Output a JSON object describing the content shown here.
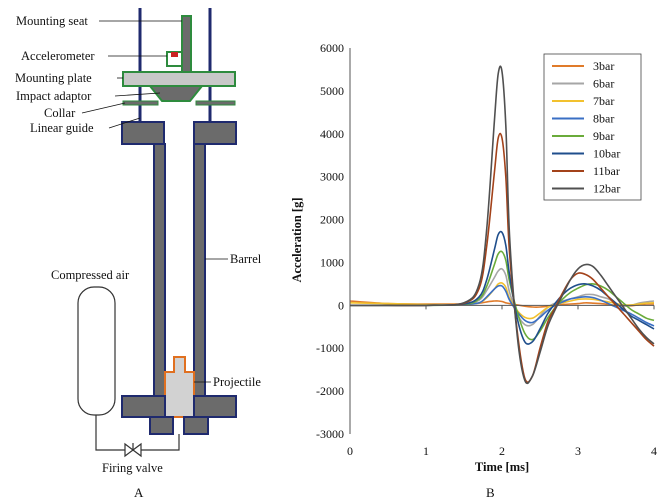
{
  "diagram": {
    "panel_label": "A",
    "labels": {
      "mounting_seat": "Mounting seat",
      "accelerometer": "Accelerometer",
      "mounting_plate": "Mounting plate",
      "impact_adaptor": "Impact adaptor",
      "collar": "Collar",
      "linear_guide": "Linear guide",
      "barrel": "Barrel",
      "compressed_air": "Compressed air",
      "projectile": "Projectile",
      "firing_valve": "Firing valve"
    },
    "colors": {
      "steel": "#6b6b6b",
      "steel_outline": "#1f2a6e",
      "plate": "#c8c8c8",
      "accent_green": "#2e8b3e",
      "accent_red": "#cc2222",
      "projectile_fill": "#d2d2d2",
      "projectile_outline": "#e07020"
    }
  },
  "chart_data": {
    "type": "line",
    "panel_label": "B",
    "xlabel": "Time [ms]",
    "ylabel": "Acceleration [g]",
    "xlim": [
      0,
      4
    ],
    "ylim": [
      -3000,
      6000
    ],
    "xticks": [
      "0",
      "1",
      "2",
      "3",
      "4"
    ],
    "yticks": [
      "-3000",
      "-2000",
      "-1000",
      "0",
      "1000",
      "2000",
      "3000",
      "4000",
      "5000",
      "6000"
    ],
    "grid": false,
    "legend_position": "top-right",
    "x": [
      0,
      0.5,
      1.0,
      1.5,
      1.7,
      1.8,
      1.9,
      1.95,
      2.0,
      2.05,
      2.1,
      2.2,
      2.3,
      2.4,
      2.5,
      2.6,
      2.7,
      2.8,
      2.9,
      3.0,
      3.1,
      3.2,
      3.3,
      3.4,
      3.5,
      3.6,
      3.7,
      3.8,
      3.9,
      4.0
    ],
    "series": [
      {
        "name": "3bar",
        "color": "#e07b2a",
        "values": [
          100,
          40,
          30,
          30,
          50,
          80,
          100,
          100,
          90,
          60,
          40,
          10,
          -20,
          -40,
          -40,
          -20,
          0,
          20,
          30,
          40,
          60,
          50,
          40,
          20,
          0,
          -20,
          -10,
          10,
          30,
          30
        ]
      },
      {
        "name": "6bar",
        "color": "#a6a6a6",
        "values": [
          0,
          0,
          0,
          20,
          120,
          350,
          650,
          800,
          850,
          700,
          300,
          -200,
          -450,
          -450,
          -250,
          -50,
          50,
          100,
          150,
          200,
          250,
          250,
          200,
          150,
          50,
          -20,
          0,
          50,
          80,
          100
        ]
      },
      {
        "name": "7bar",
        "color": "#f2c12e",
        "values": [
          60,
          40,
          20,
          20,
          60,
          180,
          380,
          500,
          520,
          420,
          160,
          -120,
          -280,
          -300,
          -180,
          -50,
          20,
          60,
          100,
          140,
          150,
          140,
          110,
          80,
          40,
          10,
          10,
          30,
          50,
          60
        ]
      },
      {
        "name": "8bar",
        "color": "#3a6fc4",
        "values": [
          0,
          0,
          0,
          20,
          60,
          200,
          380,
          450,
          450,
          330,
          120,
          -150,
          -350,
          -400,
          -280,
          -120,
          0,
          80,
          150,
          180,
          200,
          180,
          120,
          40,
          -40,
          -120,
          -200,
          -300,
          -400,
          -480
        ]
      },
      {
        "name": "9bar",
        "color": "#6aab3a",
        "values": [
          0,
          0,
          0,
          20,
          150,
          450,
          950,
          1200,
          1250,
          1050,
          550,
          -150,
          -650,
          -800,
          -600,
          -300,
          -50,
          150,
          300,
          400,
          480,
          500,
          450,
          350,
          200,
          50,
          -100,
          -200,
          -300,
          -350
        ]
      },
      {
        "name": "10bar",
        "color": "#1f4e8c",
        "values": [
          0,
          0,
          0,
          30,
          200,
          600,
          1300,
          1650,
          1700,
          1400,
          700,
          -300,
          -850,
          -850,
          -550,
          -200,
          50,
          250,
          400,
          480,
          500,
          450,
          350,
          200,
          50,
          -100,
          -250,
          -350,
          -450,
          -550
        ]
      },
      {
        "name": "11bar",
        "color": "#a3421a",
        "values": [
          0,
          0,
          0,
          50,
          400,
          1400,
          3100,
          3900,
          3900,
          3000,
          1200,
          -600,
          -1700,
          -1650,
          -1000,
          -400,
          -50,
          300,
          600,
          750,
          720,
          600,
          400,
          200,
          0,
          -200,
          -400,
          -600,
          -800,
          -950
        ]
      },
      {
        "name": "12bar",
        "color": "#505050",
        "values": [
          0,
          0,
          0,
          60,
          500,
          1800,
          4300,
          5400,
          5450,
          4200,
          1600,
          -700,
          -1750,
          -1650,
          -1100,
          -500,
          -100,
          250,
          600,
          850,
          950,
          900,
          700,
          450,
          200,
          -50,
          -300,
          -550,
          -750,
          -900
        ]
      }
    ]
  }
}
